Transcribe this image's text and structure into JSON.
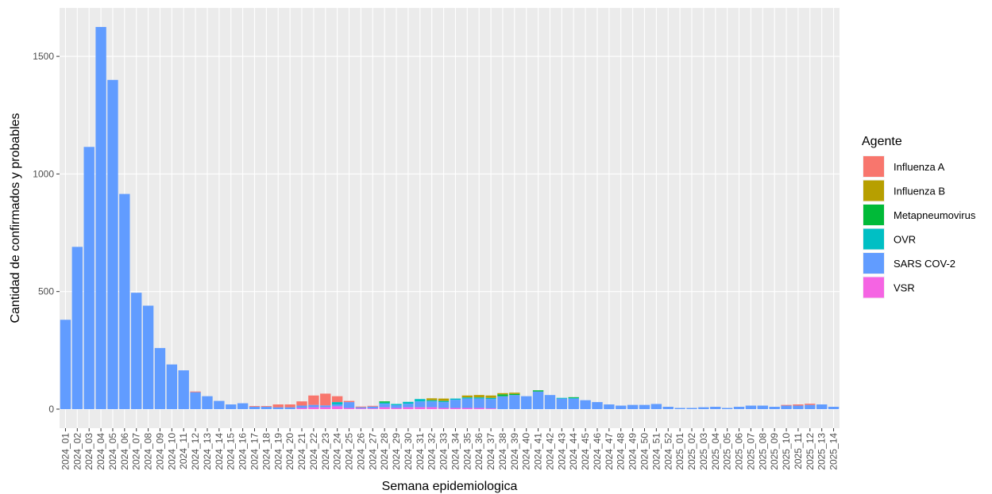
{
  "chart_data": {
    "type": "stacked_bar",
    "x_label": "Semana epidemiologica",
    "y_label": "Cantidad de confirmados y probables",
    "legend_title": "Agente",
    "legend_position": "right",
    "grid": true,
    "categories": [
      "2024_01",
      "2024_02",
      "2024_03",
      "2024_04",
      "2024_05",
      "2024_06",
      "2024_07",
      "2024_08",
      "2024_09",
      "2024_10",
      "2024_11",
      "2024_12",
      "2024_13",
      "2024_14",
      "2024_15",
      "2024_16",
      "2024_17",
      "2024_18",
      "2024_19",
      "2024_20",
      "2024_21",
      "2024_22",
      "2024_23",
      "2024_24",
      "2024_25",
      "2024_26",
      "2024_27",
      "2024_28",
      "2024_29",
      "2024_30",
      "2024_31",
      "2024_32",
      "2024_33",
      "2024_34",
      "2024_35",
      "2024_36",
      "2024_37",
      "2024_38",
      "2024_39",
      "2024_40",
      "2024_41",
      "2024_42",
      "2024_43",
      "2024_44",
      "2024_45",
      "2024_46",
      "2024_47",
      "2024_48",
      "2024_49",
      "2024_50",
      "2024_51",
      "2024_52",
      "2025_01",
      "2025_02",
      "2025_03",
      "2025_04",
      "2025_05",
      "2025_06",
      "2025_07",
      "2025_08",
      "2025_09",
      "2025_10",
      "2025_11",
      "2025_12",
      "2025_13",
      "2025_14"
    ],
    "ylim": [
      -81,
      1706
    ],
    "yticks": [
      0,
      500,
      1000,
      1500
    ],
    "series": [
      {
        "name": "Influenza A",
        "color": "#F8766D",
        "values": [
          0,
          0,
          0,
          0,
          0,
          0,
          0,
          0,
          0,
          0,
          0,
          3,
          0,
          0,
          0,
          0,
          3,
          3,
          12,
          12,
          18,
          40,
          50,
          25,
          5,
          3,
          3,
          0,
          0,
          0,
          0,
          0,
          0,
          0,
          0,
          0,
          0,
          0,
          0,
          0,
          0,
          0,
          0,
          0,
          0,
          0,
          0,
          0,
          0,
          0,
          0,
          0,
          0,
          0,
          0,
          0,
          0,
          0,
          0,
          0,
          0,
          3,
          5,
          5,
          0,
          0
        ]
      },
      {
        "name": "Influenza B",
        "color": "#B79F00",
        "values": [
          0,
          0,
          0,
          0,
          0,
          0,
          0,
          0,
          0,
          0,
          0,
          0,
          0,
          0,
          0,
          0,
          0,
          0,
          0,
          0,
          0,
          0,
          0,
          0,
          0,
          0,
          0,
          0,
          0,
          0,
          0,
          8,
          10,
          0,
          8,
          10,
          10,
          5,
          5,
          0,
          0,
          0,
          0,
          0,
          0,
          0,
          0,
          0,
          0,
          0,
          0,
          0,
          0,
          0,
          0,
          0,
          0,
          0,
          0,
          0,
          0,
          0,
          0,
          0,
          0,
          0
        ]
      },
      {
        "name": "Metapneumovirus",
        "color": "#00BA38",
        "values": [
          0,
          0,
          0,
          0,
          0,
          0,
          0,
          0,
          0,
          0,
          0,
          0,
          0,
          0,
          0,
          0,
          0,
          0,
          0,
          0,
          0,
          0,
          0,
          0,
          0,
          0,
          0,
          5,
          0,
          0,
          0,
          0,
          0,
          0,
          0,
          0,
          0,
          8,
          5,
          0,
          5,
          0,
          0,
          3,
          0,
          0,
          0,
          0,
          0,
          0,
          0,
          0,
          0,
          0,
          0,
          0,
          0,
          0,
          0,
          0,
          0,
          0,
          0,
          0,
          0,
          0
        ]
      },
      {
        "name": "OVR",
        "color": "#00BFC4",
        "values": [
          0,
          0,
          0,
          0,
          0,
          0,
          0,
          0,
          0,
          0,
          0,
          0,
          0,
          0,
          0,
          0,
          0,
          0,
          0,
          0,
          0,
          0,
          0,
          10,
          0,
          0,
          0,
          5,
          5,
          8,
          10,
          5,
          5,
          5,
          5,
          5,
          5,
          0,
          0,
          0,
          0,
          0,
          3,
          3,
          0,
          0,
          0,
          0,
          0,
          0,
          0,
          0,
          0,
          0,
          0,
          0,
          0,
          0,
          0,
          0,
          0,
          0,
          0,
          0,
          0,
          0
        ]
      },
      {
        "name": "SARS COV-2",
        "color": "#619CFF",
        "values": [
          380,
          690,
          1115,
          1625,
          1400,
          915,
          495,
          440,
          260,
          190,
          165,
          72,
          55,
          35,
          20,
          25,
          10,
          10,
          8,
          8,
          10,
          10,
          8,
          8,
          25,
          5,
          8,
          15,
          12,
          15,
          25,
          25,
          25,
          35,
          40,
          40,
          40,
          55,
          60,
          55,
          75,
          60,
          45,
          45,
          38,
          30,
          20,
          15,
          18,
          18,
          22,
          10,
          5,
          5,
          8,
          10,
          5,
          10,
          15,
          15,
          10,
          15,
          15,
          18,
          20,
          10
        ]
      },
      {
        "name": "VSR",
        "color": "#F564E3",
        "values": [
          0,
          0,
          0,
          0,
          0,
          0,
          0,
          0,
          0,
          0,
          0,
          0,
          0,
          0,
          0,
          0,
          0,
          0,
          0,
          0,
          5,
          8,
          8,
          12,
          5,
          3,
          3,
          8,
          5,
          8,
          8,
          8,
          5,
          5,
          5,
          5,
          3,
          0,
          0,
          0,
          0,
          0,
          0,
          0,
          0,
          0,
          0,
          0,
          0,
          0,
          0,
          0,
          0,
          0,
          0,
          0,
          0,
          0,
          0,
          0,
          0,
          0,
          0,
          0,
          0,
          0
        ]
      }
    ]
  }
}
